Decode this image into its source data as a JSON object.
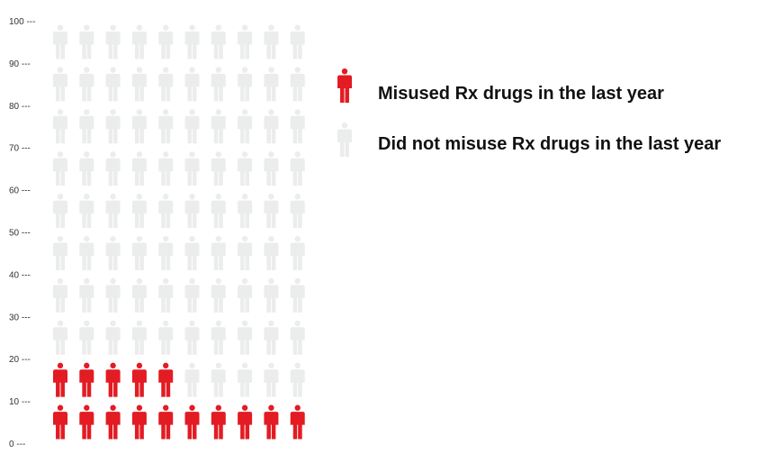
{
  "chart_data": {
    "type": "pictograph",
    "title": "",
    "xlabel": "",
    "ylabel": "",
    "ylim": [
      0,
      100
    ],
    "y_ticks": [
      {
        "value": 100,
        "label": "100 ---"
      },
      {
        "value": 90,
        "label": "90 ---"
      },
      {
        "value": 80,
        "label": "80 ---"
      },
      {
        "value": 70,
        "label": "70 ---"
      },
      {
        "value": 60,
        "label": "60 ---"
      },
      {
        "value": 50,
        "label": "50 ---"
      },
      {
        "value": 40,
        "label": "40 ---"
      },
      {
        "value": 30,
        "label": "30 ---"
      },
      {
        "value": 20,
        "label": "20 ---"
      },
      {
        "value": 10,
        "label": "10 ---"
      },
      {
        "value": 0,
        "label": "0 ---"
      }
    ],
    "total_people": 100,
    "columns": 10,
    "series": [
      {
        "name": "Misused Rx drugs in the last year",
        "value": 15,
        "color": "#e31b23"
      },
      {
        "name": "Did not misuse Rx drugs in the last year",
        "value": 85,
        "color": "#ebecec"
      }
    ],
    "legend_position": "right",
    "grid": false
  }
}
